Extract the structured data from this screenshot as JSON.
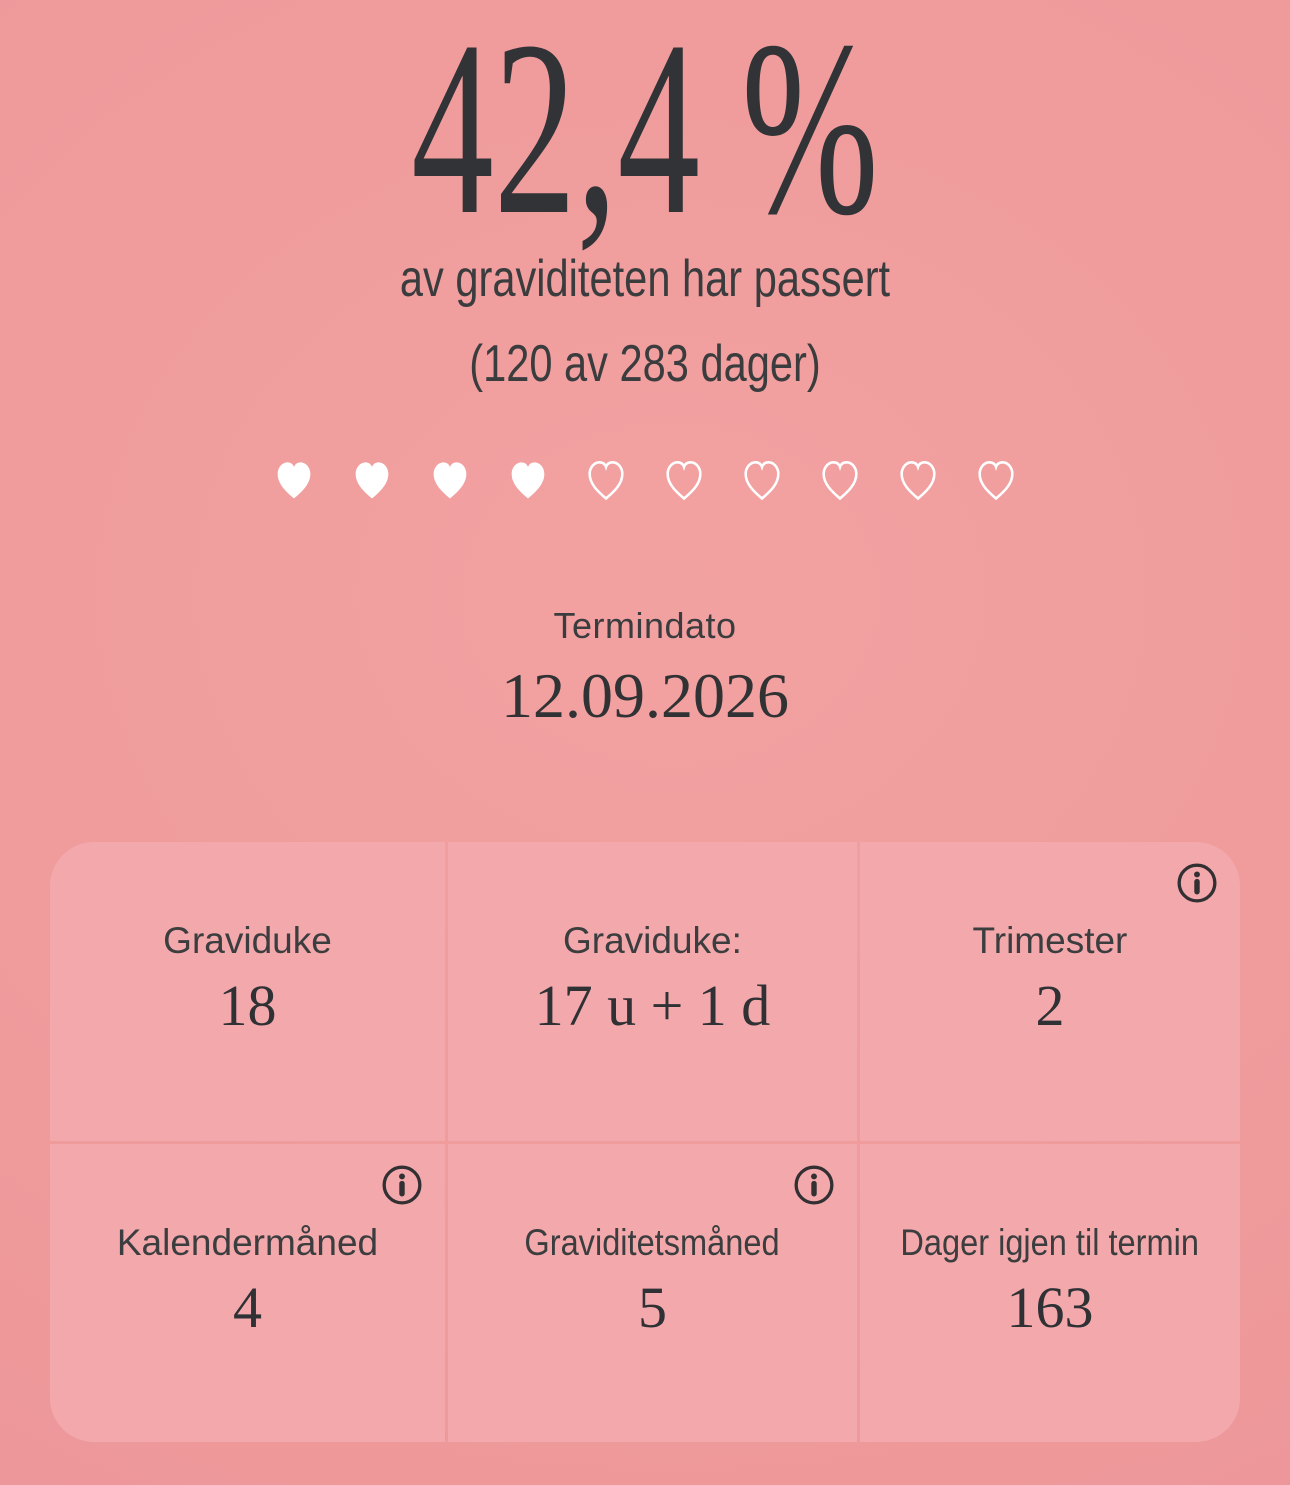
{
  "hero": {
    "percent": "42,4 %",
    "subtitle": "av graviditeten har passert",
    "days_caption": "(120 av 283 dager)"
  },
  "progress": {
    "percent_value": 42.4,
    "days_passed": 120,
    "days_total": 283,
    "hearts_total": 10,
    "hearts_filled": 4
  },
  "due_date": {
    "label": "Termindato",
    "value": "12.09.2026"
  },
  "stats": {
    "cells": [
      {
        "label": "Graviduke",
        "value": "18",
        "info_icon": false
      },
      {
        "label": "Graviduke:",
        "value": "17 u + 1 d",
        "info_icon": false
      },
      {
        "label": "Trimester",
        "value": "2",
        "info_icon": true
      },
      {
        "label": "Kalendermåned",
        "value": "4",
        "info_icon": true
      },
      {
        "label": "Graviditetsmåned",
        "value": "5",
        "info_icon": true
      },
      {
        "label": "Dager igjen til termin",
        "value": "163",
        "info_icon": false
      }
    ]
  },
  "icons": {
    "info": "ⓘ",
    "heart_filled": "♥",
    "heart_outline": "♡"
  },
  "colors": {
    "background": "#ef9a9b",
    "card": "#f3a8ab",
    "text_dark": "#313336",
    "heart": "#ffffff"
  }
}
